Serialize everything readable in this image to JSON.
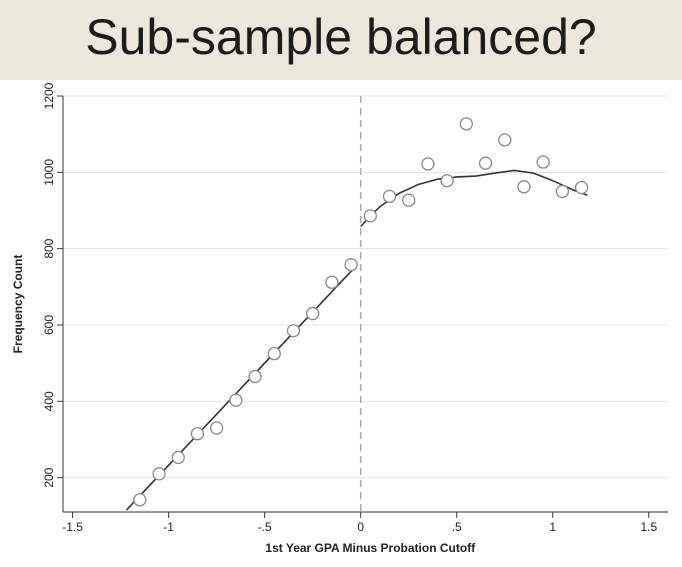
{
  "slide": {
    "title": "Sub-sample balanced?"
  },
  "chart_data": {
    "type": "scatter",
    "title": "",
    "xlabel": "1st Year GPA Minus Probation Cutoff",
    "ylabel": "Frequency Count",
    "xlim": [
      -1.55,
      1.6
    ],
    "ylim": [
      110,
      1200
    ],
    "x_ticks": [
      -1.5,
      -1,
      -0.5,
      0,
      0.5,
      1,
      1.5
    ],
    "x_tick_labels": [
      "-1.5",
      "-1",
      "-.5",
      "0",
      ".5",
      "1",
      "1.5"
    ],
    "y_ticks": [
      200,
      400,
      600,
      800,
      1000,
      1200
    ],
    "y_tick_labels": [
      "200",
      "400",
      "600",
      "800",
      "1000",
      "1200"
    ],
    "grid": true,
    "cutoff_line_x": 0,
    "series": [
      {
        "points": [
          [
            -1.15,
            142
          ],
          [
            -1.05,
            210
          ],
          [
            -0.95,
            253
          ],
          [
            -0.85,
            315
          ],
          [
            -0.75,
            330
          ],
          [
            -0.65,
            403
          ],
          [
            -0.55,
            465
          ],
          [
            -0.45,
            525
          ],
          [
            -0.35,
            585
          ],
          [
            -0.25,
            630
          ],
          [
            -0.15,
            712
          ],
          [
            -0.05,
            758
          ],
          [
            0.05,
            886
          ],
          [
            0.15,
            937
          ],
          [
            0.25,
            927
          ],
          [
            0.35,
            1022
          ],
          [
            0.45,
            978
          ],
          [
            0.55,
            1127
          ],
          [
            0.65,
            1024
          ],
          [
            0.75,
            1085
          ],
          [
            0.85,
            962
          ],
          [
            0.95,
            1027
          ],
          [
            1.05,
            950
          ],
          [
            1.15,
            960
          ]
        ]
      },
      {
        "type": "line",
        "points": [
          [
            -1.22,
            115
          ],
          [
            -0.02,
            757
          ]
        ]
      },
      {
        "type": "line",
        "points": [
          [
            0.0,
            858
          ],
          [
            0.05,
            885
          ],
          [
            0.1,
            910
          ],
          [
            0.2,
            945
          ],
          [
            0.3,
            968
          ],
          [
            0.4,
            982
          ],
          [
            0.5,
            988
          ],
          [
            0.6,
            990
          ],
          [
            0.7,
            998
          ],
          [
            0.8,
            1005
          ],
          [
            0.9,
            998
          ],
          [
            1.0,
            978
          ],
          [
            1.1,
            955
          ],
          [
            1.18,
            940
          ]
        ]
      }
    ]
  }
}
